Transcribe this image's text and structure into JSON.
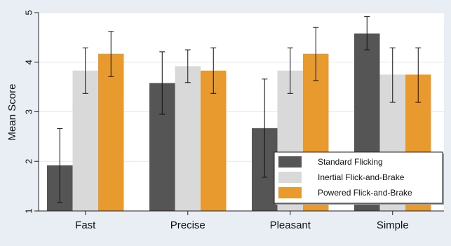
{
  "chart_data": {
    "type": "bar",
    "title": "",
    "xlabel": "",
    "ylabel": "Mean Score",
    "ylim": [
      1,
      5
    ],
    "yticks": [
      1,
      2,
      3,
      4,
      5
    ],
    "grid": true,
    "legend_position": "bottom-right inside plot",
    "categories": [
      "Fast",
      "Precise",
      "Pleasant",
      "Simple"
    ],
    "series": [
      {
        "name": "Standard Flicking",
        "color": "#555555",
        "values": [
          1.92,
          3.58,
          2.67,
          4.58
        ],
        "error_low": [
          1.17,
          2.95,
          1.68,
          4.25
        ],
        "error_high": [
          2.66,
          4.21,
          3.66,
          4.92
        ]
      },
      {
        "name": "Inertial Flick-and-Brake",
        "color": "#d9d9d9",
        "values": [
          3.83,
          3.92,
          3.83,
          3.75
        ],
        "error_low": [
          3.37,
          3.59,
          3.37,
          3.19
        ],
        "error_high": [
          4.29,
          4.25,
          4.29,
          4.29
        ]
      },
      {
        "name": "Powered Flick-and-Brake",
        "color": "#e89a2e",
        "values": [
          4.17,
          3.83,
          4.17,
          3.75
        ],
        "error_low": [
          3.71,
          3.37,
          3.63,
          3.19
        ],
        "error_high": [
          4.62,
          4.29,
          4.7,
          4.29
        ]
      }
    ]
  }
}
